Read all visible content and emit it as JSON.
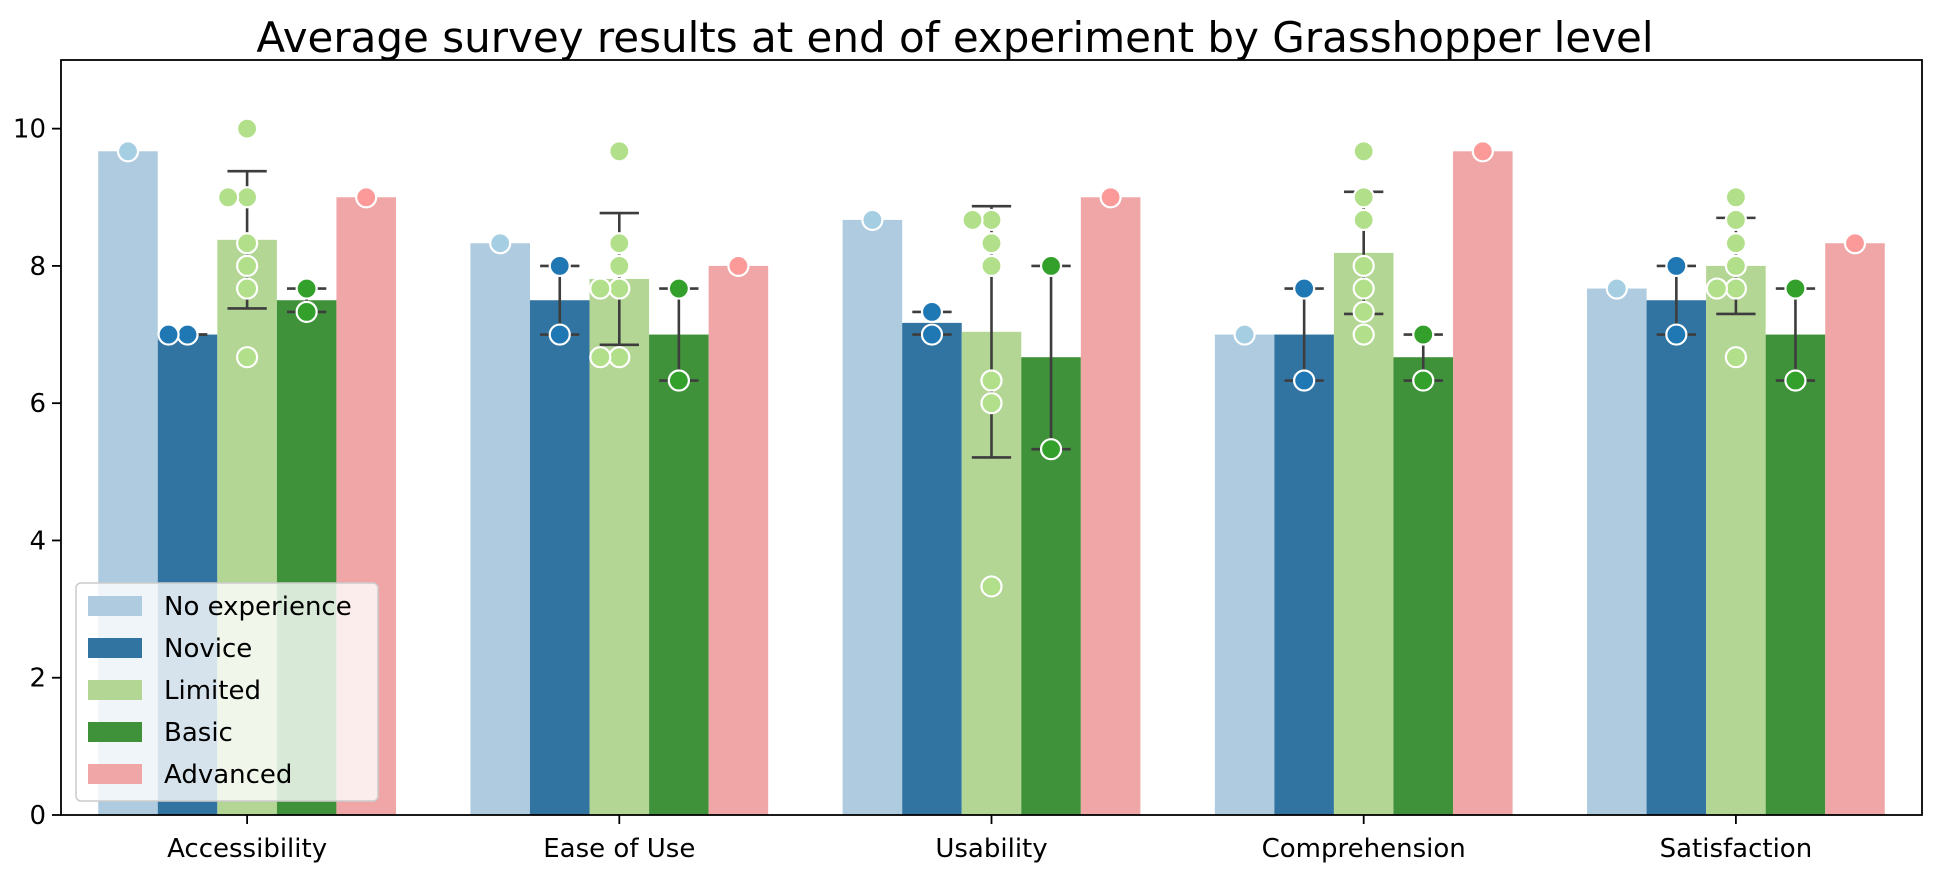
{
  "chart_data": {
    "type": "bar",
    "title": "Average survey results at end of experiment by Grasshopper level",
    "xlabel": "",
    "ylabel": "",
    "ylim": [
      0,
      11
    ],
    "yticks": [
      0,
      2,
      4,
      6,
      8,
      10
    ],
    "categories": [
      "Accessibility",
      "Ease of Use",
      "Usability",
      "Comprehension",
      "Satisfaction"
    ],
    "grid": false,
    "legend_position": "lower-left",
    "series": [
      {
        "name": "No experience",
        "color": "#aecbdf",
        "point_color": "#a6cee3",
        "values": [
          9.67,
          8.33,
          8.67,
          7.0,
          7.67
        ],
        "error": [
          null,
          null,
          null,
          null,
          null
        ],
        "points": [
          [
            9.67
          ],
          [
            8.33
          ],
          [
            8.67
          ],
          [
            7.0
          ],
          [
            7.67
          ]
        ]
      },
      {
        "name": "Novice",
        "color": "#3274a1",
        "point_color": "#1f78b4",
        "values": [
          7.0,
          7.5,
          7.17,
          7.0,
          7.5
        ],
        "error": [
          [
            7.0,
            7.0
          ],
          [
            7.0,
            8.0
          ],
          [
            7.0,
            7.33
          ],
          [
            6.33,
            7.67
          ],
          [
            7.0,
            8.0
          ]
        ],
        "points": [
          [
            7.0,
            7.0
          ],
          [
            8.0,
            7.0
          ],
          [
            7.33,
            7.0
          ],
          [
            7.67,
            6.33
          ],
          [
            8.0,
            7.0
          ]
        ]
      },
      {
        "name": "Limited",
        "color": "#b3d695",
        "point_color": "#b2df8a",
        "values": [
          8.38,
          7.81,
          7.04,
          8.19,
          8.0
        ],
        "error": [
          [
            7.38,
            9.38
          ],
          [
            6.85,
            8.77
          ],
          [
            5.21,
            8.87
          ],
          [
            7.3,
            9.08
          ],
          [
            7.3,
            8.7
          ]
        ],
        "points": [
          [
            10.0,
            9.0,
            9.0,
            8.33,
            8.0,
            7.67,
            6.67
          ],
          [
            9.67,
            8.33,
            8.0,
            7.67,
            7.67,
            6.67,
            6.67
          ],
          [
            8.67,
            8.67,
            8.33,
            8.0,
            6.33,
            6.0,
            3.33
          ],
          [
            9.67,
            9.0,
            8.67,
            8.0,
            7.67,
            7.33,
            7.0
          ],
          [
            9.0,
            8.67,
            8.33,
            8.0,
            7.67,
            7.67,
            6.67
          ]
        ]
      },
      {
        "name": "Basic",
        "color": "#3f923a",
        "point_color": "#33a02c",
        "values": [
          7.5,
          7.0,
          6.67,
          6.67,
          7.0
        ],
        "error": [
          [
            7.33,
            7.67
          ],
          [
            6.33,
            7.67
          ],
          [
            5.33,
            8.0
          ],
          [
            6.33,
            7.0
          ],
          [
            6.33,
            7.67
          ]
        ],
        "points": [
          [
            7.67,
            7.33
          ],
          [
            7.67,
            6.33
          ],
          [
            8.0,
            5.33
          ],
          [
            7.0,
            6.33
          ],
          [
            7.67,
            6.33
          ]
        ]
      },
      {
        "name": "Advanced",
        "color": "#f0a6a6",
        "point_color": "#fb9a99",
        "values": [
          9.0,
          8.0,
          9.0,
          9.67,
          8.33
        ],
        "error": [
          null,
          null,
          null,
          null,
          null
        ],
        "points": [
          [
            9.0
          ],
          [
            8.0
          ],
          [
            9.0
          ],
          [
            9.67
          ],
          [
            8.33
          ]
        ]
      }
    ]
  }
}
